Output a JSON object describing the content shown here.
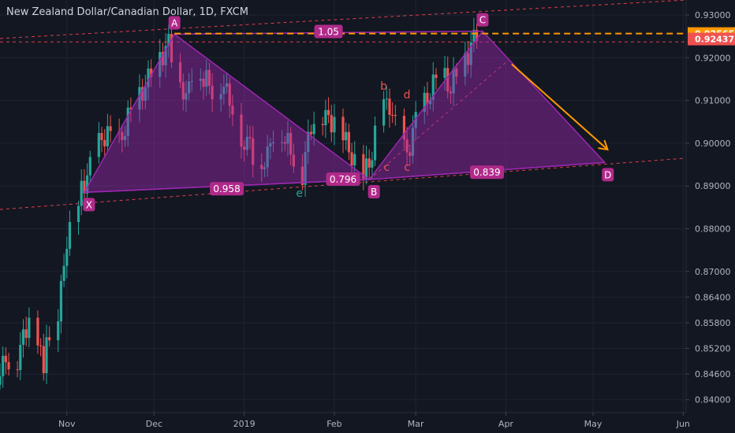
{
  "header": {
    "title": "New Zealand Dollar/Canadian Dollar, 1D, FXCM"
  },
  "colors": {
    "background": "#131722",
    "up": "#26a69a",
    "down": "#ef5350",
    "pattern_fill": "#9c27b0",
    "pattern_label": "#b02a8a",
    "dashed": "#e03e4a",
    "orange": "#ff9800",
    "axis_text": "#b2b5be",
    "corr_e": "#26a69a",
    "corr_red": "#ef5350"
  },
  "chart_data": {
    "type": "candlestick",
    "instrument": "NZDCAD",
    "timeframe": "1D",
    "x_ticks": [
      {
        "date": "2018-11-01",
        "label": "Nov"
      },
      {
        "date": "2018-12-01",
        "label": "Dec"
      },
      {
        "date": "2019-01-01",
        "label": "2019"
      },
      {
        "date": "2019-02-01",
        "label": "Feb"
      },
      {
        "date": "2019-03-01",
        "label": "Mar"
      },
      {
        "date": "2019-04-01",
        "label": "Apr"
      },
      {
        "date": "2019-05-01",
        "label": "May"
      },
      {
        "date": "2019-06-01",
        "label": "Jun"
      }
    ],
    "y_ticks": [
      0.93,
      0.92,
      0.91,
      0.9,
      0.89,
      0.88,
      0.87,
      0.864,
      0.858,
      0.852,
      0.846,
      0.84
    ],
    "y_tick_labels": [
      "0.93000",
      "0.92000",
      "0.91000",
      "0.90000",
      "0.89000",
      "0.88000",
      "0.87000",
      "0.86400",
      "0.85800",
      "0.85200",
      "0.84600",
      "0.84000"
    ],
    "ylim": [
      0.837,
      0.9335
    ],
    "xlim": [
      "2018-10-09",
      "2019-06-02"
    ],
    "price_labels": [
      {
        "value": 0.92565,
        "label": "0.92565",
        "color": "#ff9800"
      },
      {
        "value": 0.92437,
        "label": "0.92437",
        "color": "#ef5350"
      }
    ],
    "candles_close": [
      {
        "date": "2018-10-09",
        "close": 0.8435
      },
      {
        "date": "2018-10-12",
        "close": 0.8495
      },
      {
        "date": "2018-10-15",
        "close": 0.8475
      },
      {
        "date": "2018-10-18",
        "close": 0.854
      },
      {
        "date": "2018-10-21",
        "close": 0.863
      },
      {
        "date": "2018-10-23",
        "close": 0.855
      },
      {
        "date": "2018-10-25",
        "close": 0.849
      },
      {
        "date": "2018-10-27",
        "close": 0.856
      },
      {
        "date": "2018-10-30",
        "close": 0.861
      },
      {
        "date": "2018-11-01",
        "close": 0.87
      },
      {
        "date": "2018-11-03",
        "close": 0.879
      },
      {
        "date": "2018-11-05",
        "close": 0.886
      },
      {
        "date": "2018-11-07",
        "close": 0.8895
      },
      {
        "date": "2018-11-10",
        "close": 0.894
      },
      {
        "date": "2018-11-13",
        "close": 0.9
      },
      {
        "date": "2018-11-16",
        "close": 0.903
      },
      {
        "date": "2018-11-19",
        "close": 0.898
      },
      {
        "date": "2018-11-22",
        "close": 0.904
      },
      {
        "date": "2018-11-25",
        "close": 0.909
      },
      {
        "date": "2018-11-28",
        "close": 0.912
      },
      {
        "date": "2018-12-01",
        "close": 0.916
      },
      {
        "date": "2018-12-04",
        "close": 0.92
      },
      {
        "date": "2018-12-07",
        "close": 0.923
      },
      {
        "date": "2018-12-10",
        "close": 0.918
      },
      {
        "date": "2018-12-13",
        "close": 0.91
      },
      {
        "date": "2018-12-16",
        "close": 0.921
      },
      {
        "date": "2018-12-19",
        "close": 0.915
      },
      {
        "date": "2018-12-22",
        "close": 0.913
      },
      {
        "date": "2018-12-25",
        "close": 0.914
      },
      {
        "date": "2018-12-28",
        "close": 0.91
      },
      {
        "date": "2019-01-01",
        "close": 0.902
      },
      {
        "date": "2019-01-04",
        "close": 0.899
      },
      {
        "date": "2019-01-07",
        "close": 0.895
      },
      {
        "date": "2019-01-10",
        "close": 0.897
      },
      {
        "date": "2019-01-13",
        "close": 0.906
      },
      {
        "date": "2019-01-16",
        "close": 0.901
      },
      {
        "date": "2019-01-19",
        "close": 0.897
      },
      {
        "date": "2019-01-22",
        "close": 0.893
      },
      {
        "date": "2019-01-25",
        "close": 0.904
      },
      {
        "date": "2019-01-28",
        "close": 0.907
      },
      {
        "date": "2019-01-31",
        "close": 0.905
      },
      {
        "date": "2019-02-03",
        "close": 0.906
      },
      {
        "date": "2019-02-06",
        "close": 0.9
      },
      {
        "date": "2019-02-09",
        "close": 0.896
      },
      {
        "date": "2019-02-12",
        "close": 0.892
      },
      {
        "date": "2019-02-15",
        "close": 0.898
      },
      {
        "date": "2019-02-18",
        "close": 0.908
      },
      {
        "date": "2019-02-21",
        "close": 0.909
      },
      {
        "date": "2019-02-24",
        "close": 0.901
      },
      {
        "date": "2019-02-27",
        "close": 0.897
      },
      {
        "date": "2019-03-02",
        "close": 0.905
      },
      {
        "date": "2019-03-05",
        "close": 0.909
      },
      {
        "date": "2019-03-08",
        "close": 0.914
      },
      {
        "date": "2019-03-11",
        "close": 0.917
      },
      {
        "date": "2019-03-14",
        "close": 0.913
      },
      {
        "date": "2019-03-17",
        "close": 0.918
      },
      {
        "date": "2019-03-20",
        "close": 0.921
      },
      {
        "date": "2019-03-23",
        "close": 0.9256
      }
    ]
  },
  "pattern": {
    "points": [
      {
        "name": "X",
        "date": "2018-11-07",
        "price": 0.8885
      },
      {
        "name": "A",
        "date": "2018-12-08",
        "price": 0.9255
      },
      {
        "name": "B",
        "date": "2019-02-13",
        "price": 0.8915
      },
      {
        "name": "C",
        "date": "2019-03-24",
        "price": 0.9262
      },
      {
        "name": "D",
        "date": "2019-05-05",
        "price": 0.8955
      }
    ],
    "ratios": [
      {
        "value": "1.05",
        "between": [
          "A",
          "C"
        ]
      },
      {
        "value": "0.958",
        "between": [
          "X",
          "B"
        ]
      },
      {
        "value": "0.796",
        "between": [
          "A",
          "B"
        ]
      },
      {
        "value": "0.839",
        "between": [
          "B",
          "D"
        ]
      }
    ],
    "corrective_labels": [
      {
        "label": "b",
        "date": "2019-02-18",
        "price": 0.9125
      },
      {
        "label": "d",
        "date": "2019-02-26",
        "price": 0.9105
      },
      {
        "label": "e",
        "date": "2019-01-20",
        "price": 0.8875
      },
      {
        "label": "c",
        "date": "2019-02-19",
        "price": 0.8935
      },
      {
        "label": "c",
        "date": "2019-02-26",
        "price": 0.8935
      }
    ]
  }
}
